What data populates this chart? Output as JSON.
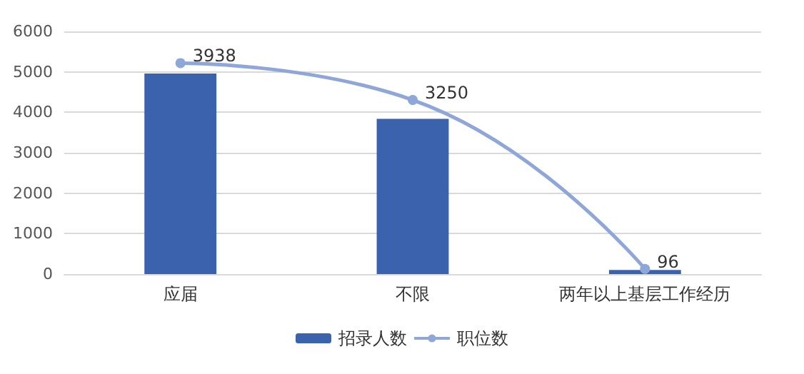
{
  "chart_data": {
    "type": "bar",
    "categories": [
      "应届",
      "不限",
      "两年以上基层工作经历"
    ],
    "series": [
      {
        "name": "招录人数",
        "color": "#3a62ad",
        "values": [
          4960,
          3840,
          100
        ]
      },
      {
        "name": "职位数",
        "type": "line",
        "axis": "y2",
        "color": "#8fa6d9",
        "values": [
          3938,
          3250,
          96
        ],
        "data_labels": true
      }
    ],
    "ylim": [
      0,
      6000
    ],
    "yticks": [
      0,
      1000,
      2000,
      3000,
      4000,
      5000,
      6000
    ],
    "y2lim": [
      0,
      4530
    ],
    "grid": "y",
    "legend": "bottom",
    "marker": "circle"
  }
}
